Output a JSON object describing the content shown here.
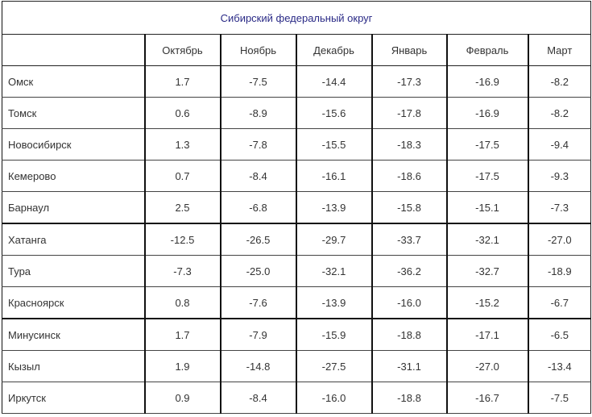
{
  "title": "Сибирский федеральный округ",
  "columns": [
    "",
    "Октябрь",
    "Ноябрь",
    "Декабрь",
    "Январь",
    "Февраль",
    "Март"
  ],
  "rows": [
    {
      "city": "Омск",
      "values": [
        "1.7",
        "-7.5",
        "-14.4",
        "-17.3",
        "-16.9",
        "-8.2"
      ]
    },
    {
      "city": "Томск",
      "values": [
        "0.6",
        "-8.9",
        "-15.6",
        "-17.8",
        "-16.9",
        "-8.2"
      ]
    },
    {
      "city": "Новосибирск",
      "values": [
        "1.3",
        "-7.8",
        "-15.5",
        "-18.3",
        "-17.5",
        "-9.4"
      ]
    },
    {
      "city": "Кемерово",
      "values": [
        "0.7",
        "-8.4",
        "-16.1",
        "-18.6",
        "-17.5",
        "-9.3"
      ]
    },
    {
      "city": "Барнаул",
      "values": [
        "2.5",
        "-6.8",
        "-13.9",
        "-15.8",
        "-15.1",
        "-7.3"
      ]
    },
    {
      "city": "Хатанга",
      "values": [
        "-12.5",
        "-26.5",
        "-29.7",
        "-33.7",
        "-32.1",
        "-27.0"
      ]
    },
    {
      "city": "Тура",
      "values": [
        "-7.3",
        "-25.0",
        "-32.1",
        "-36.2",
        "-32.7",
        "-18.9"
      ]
    },
    {
      "city": "Красноярск",
      "values": [
        "0.8",
        "-7.6",
        "-13.9",
        "-16.0",
        "-15.2",
        "-6.7"
      ]
    },
    {
      "city": "Минусинск",
      "values": [
        "1.7",
        "-7.9",
        "-15.9",
        "-18.8",
        "-17.1",
        "-6.5"
      ]
    },
    {
      "city": "Кызыл",
      "values": [
        "1.9",
        "-14.8",
        "-27.5",
        "-31.1",
        "-27.0",
        "-13.4"
      ]
    },
    {
      "city": "Иркутск",
      "values": [
        "0.9",
        "-8.4",
        "-16.0",
        "-18.8",
        "-16.7",
        "-7.5"
      ]
    }
  ],
  "colors": {
    "title_text": "#2a2a86",
    "border": "#111111",
    "text": "#333333",
    "background": "#ffffff"
  }
}
